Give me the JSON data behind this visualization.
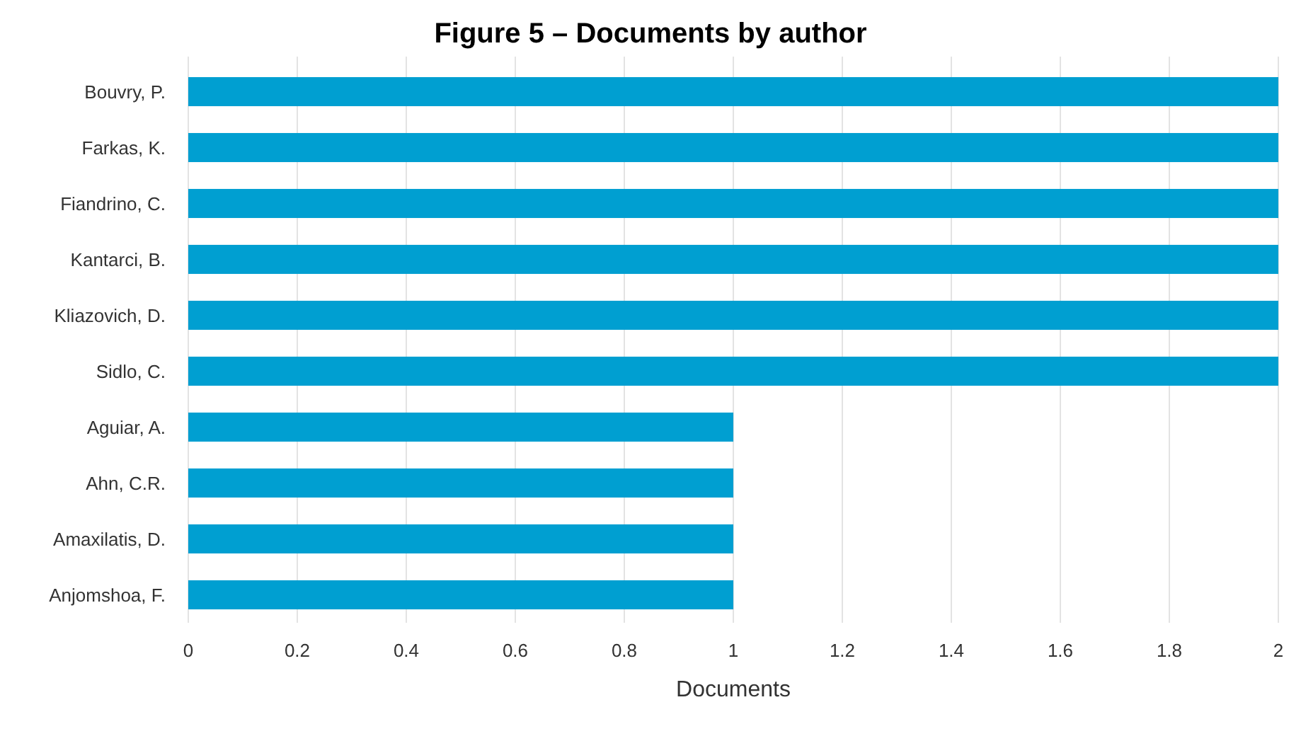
{
  "chart_data": {
    "type": "bar",
    "orientation": "horizontal",
    "title": "Figure 5 – Documents by author",
    "xlabel": "Documents",
    "categories": [
      "Bouvry, P.",
      "Farkas, K.",
      "Fiandrino, C.",
      "Kantarci, B.",
      "Kliazovich, D.",
      "Sidlo, C.",
      "Aguiar, A.",
      "Ahn, C.R.",
      "Amaxilatis, D.",
      "Anjomshoa, F."
    ],
    "values": [
      2,
      2,
      2,
      2,
      2,
      2,
      1,
      1,
      1,
      1
    ],
    "color": "#009fd1",
    "xlim": [
      0,
      2
    ],
    "xticks": [
      0,
      0.2,
      0.4,
      0.6,
      0.8,
      1,
      1.2,
      1.4,
      1.6,
      1.8,
      2
    ],
    "grid": "x"
  }
}
